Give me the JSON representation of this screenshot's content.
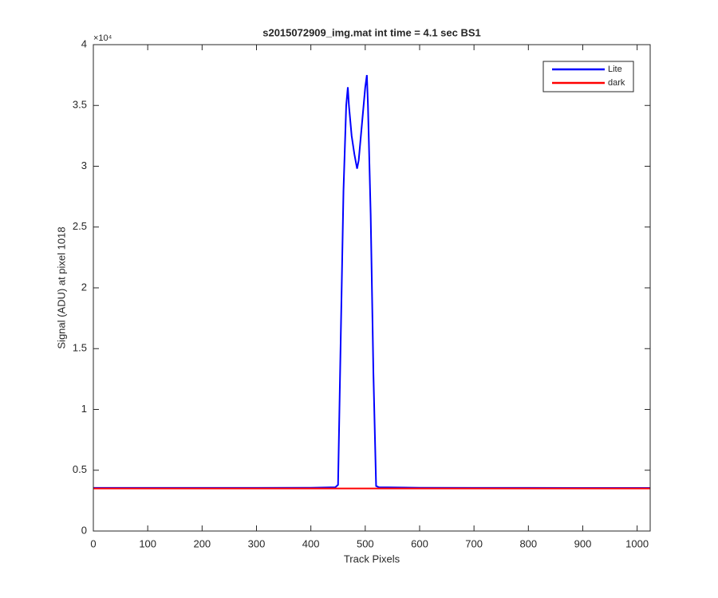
{
  "chart_data": {
    "type": "line",
    "title": "s2015072909_img.mat int time = 4.1 sec   BS1",
    "x_label": "Track Pixels",
    "y_label": "Signal (ADU) at pixel 1018",
    "y_exponent_label": "×10⁴",
    "x": [
      0,
      100,
      200,
      300,
      400,
      445,
      450,
      455,
      460,
      465,
      468,
      470,
      475,
      480,
      485,
      488,
      490,
      495,
      500,
      503,
      505,
      510,
      515,
      520,
      525,
      600,
      700,
      800,
      900,
      1000,
      1024
    ],
    "series": [
      {
        "name": "Lite",
        "color": "#0000ff",
        "values": [
          3550,
          3550,
          3550,
          3550,
          3560,
          3600,
          3800,
          16000,
          28000,
          35000,
          36500,
          35000,
          32500,
          31000,
          29800,
          30500,
          31500,
          34000,
          36500,
          37500,
          35000,
          26000,
          13000,
          3700,
          3600,
          3560,
          3550,
          3550,
          3540,
          3540,
          3540
        ]
      },
      {
        "name": "dark",
        "color": "#ff0000",
        "values": [
          3500,
          3500,
          3500,
          3500,
          3500,
          3500,
          3500,
          3500,
          3500,
          3500,
          3500,
          3500,
          3500,
          3500,
          3500,
          3500,
          3500,
          3500,
          3500,
          3500,
          3500,
          3500,
          3500,
          3500,
          3500,
          3500,
          3500,
          3500,
          3500,
          3500,
          3500
        ]
      }
    ],
    "xlim": [
      0,
      1024
    ],
    "xticks": [
      0,
      100,
      200,
      300,
      400,
      500,
      600,
      700,
      800,
      900,
      1000
    ],
    "ylim": [
      0,
      40000
    ],
    "yticks": [
      0,
      {
        "value": 5000,
        "label": "0.5"
      },
      {
        "value": 10000,
        "label": "1"
      },
      {
        "value": 15000,
        "label": "1.5"
      },
      {
        "value": 20000,
        "label": "2"
      },
      {
        "value": 25000,
        "label": "2.5"
      },
      {
        "value": 30000,
        "label": "3"
      },
      {
        "value": 35000,
        "label": "3.5"
      },
      {
        "value": 40000,
        "label": "4"
      }
    ],
    "grid": false,
    "legend_location": "northeast"
  }
}
